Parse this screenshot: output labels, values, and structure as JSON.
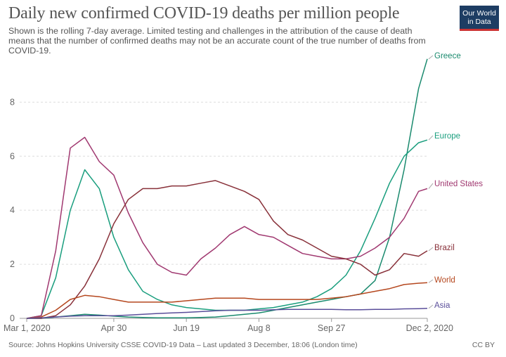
{
  "header": {
    "title": "Daily new confirmed COVID-19 deaths per million people",
    "subtitle": "Shown is the rolling 7-day average. Limited testing and challenges in the attribution of the cause of death means that the number of confirmed deaths may not be an accurate count of the true number of deaths from COVID-19.",
    "logo_line1": "Our World",
    "logo_line2": "in Data"
  },
  "footer": {
    "source": "Source: Johns Hopkins University CSSE COVID-19 Data – Last updated 3 December, 18:06 (London time)",
    "license": "CC BY"
  },
  "chart_data": {
    "type": "line",
    "title": "Daily new confirmed COVID-19 deaths per million people",
    "xlabel": "",
    "ylabel": "",
    "x_range": [
      "2020-03-01",
      "2020-12-02"
    ],
    "x_ticks": [
      "Mar 1, 2020",
      "Apr 30",
      "Jun 19",
      "Aug 8",
      "Sep 27",
      "Dec 2, 2020"
    ],
    "y_ticks": [
      0,
      2,
      4,
      6,
      8
    ],
    "ylim": [
      0,
      9.7
    ],
    "grid": "horizontal-dashed",
    "legend": "inline-right",
    "x_days": [
      0,
      10,
      20,
      30,
      40,
      50,
      60,
      70,
      80,
      90,
      100,
      110,
      120,
      130,
      140,
      150,
      160,
      170,
      180,
      190,
      200,
      210,
      220,
      230,
      240,
      250,
      260,
      270,
      276
    ],
    "series": [
      {
        "name": "Greece",
        "color": "#1a8a6e",
        "values": [
          0,
          0,
          0.05,
          0.1,
          0.15,
          0.12,
          0.08,
          0.05,
          0.03,
          0.02,
          0.02,
          0.02,
          0.03,
          0.05,
          0.1,
          0.15,
          0.2,
          0.3,
          0.4,
          0.5,
          0.6,
          0.7,
          0.8,
          0.9,
          1.4,
          3.0,
          5.5,
          8.5,
          9.6
        ]
      },
      {
        "name": "Europe",
        "color": "#1a9e7e",
        "values": [
          0,
          0.1,
          1.5,
          4.0,
          5.5,
          4.8,
          3.0,
          1.8,
          1.0,
          0.7,
          0.5,
          0.4,
          0.35,
          0.3,
          0.3,
          0.3,
          0.35,
          0.4,
          0.5,
          0.6,
          0.8,
          1.1,
          1.6,
          2.5,
          3.7,
          5.0,
          6.0,
          6.5,
          6.6
        ]
      },
      {
        "name": "United States",
        "color": "#a03870",
        "values": [
          0,
          0.1,
          2.5,
          6.3,
          6.7,
          5.8,
          5.3,
          3.9,
          2.8,
          2.0,
          1.7,
          1.6,
          2.2,
          2.6,
          3.1,
          3.4,
          3.1,
          3.0,
          2.7,
          2.4,
          2.3,
          2.2,
          2.2,
          2.3,
          2.6,
          3.0,
          3.7,
          4.7,
          4.8
        ]
      },
      {
        "name": "Brazil",
        "color": "#883039",
        "values": [
          0,
          0,
          0.1,
          0.5,
          1.2,
          2.2,
          3.5,
          4.4,
          4.8,
          4.8,
          4.9,
          4.9,
          5.0,
          5.1,
          4.9,
          4.7,
          4.4,
          3.6,
          3.1,
          2.9,
          2.6,
          2.3,
          2.2,
          2.0,
          1.6,
          1.8,
          2.4,
          2.3,
          2.5
        ]
      },
      {
        "name": "World",
        "color": "#b5471e",
        "values": [
          0,
          0.05,
          0.3,
          0.7,
          0.85,
          0.8,
          0.7,
          0.6,
          0.6,
          0.6,
          0.6,
          0.65,
          0.7,
          0.75,
          0.75,
          0.75,
          0.7,
          0.7,
          0.7,
          0.7,
          0.7,
          0.75,
          0.8,
          0.9,
          1.0,
          1.1,
          1.25,
          1.3,
          1.32
        ]
      },
      {
        "name": "Asia",
        "color": "#5a4e9a",
        "values": [
          0,
          0.02,
          0.05,
          0.08,
          0.1,
          0.1,
          0.1,
          0.12,
          0.15,
          0.18,
          0.2,
          0.22,
          0.25,
          0.28,
          0.3,
          0.3,
          0.3,
          0.32,
          0.33,
          0.33,
          0.33,
          0.33,
          0.32,
          0.32,
          0.33,
          0.33,
          0.35,
          0.36,
          0.37
        ]
      }
    ]
  }
}
